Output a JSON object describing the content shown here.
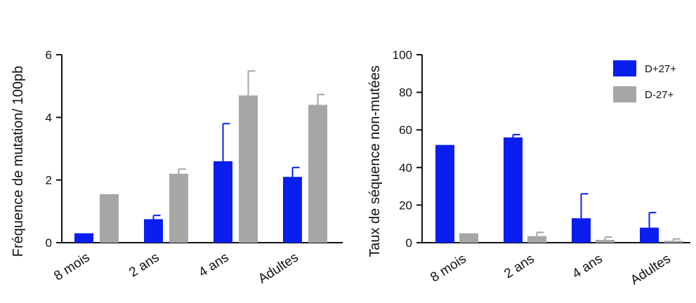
{
  "colors": {
    "blue": "#0a1ef0",
    "gray": "#a6a6a6",
    "axis": "#111111"
  },
  "legend": {
    "entries": [
      {
        "label": "D+27+",
        "color": "#0a1ef0"
      },
      {
        "label": "D-27+",
        "color": "#a6a6a6"
      }
    ],
    "placement": "top-right of right chart"
  },
  "chart_data": [
    {
      "type": "bar",
      "title": "",
      "xlabel": "",
      "ylabel": "Fréquence de mutation/ 100pb",
      "categories": [
        "8 mois",
        "2 ans",
        "4 ans",
        "Adultes"
      ],
      "ylim": [
        0,
        6
      ],
      "yticks": [
        0,
        2,
        4,
        6
      ],
      "grid": false,
      "series": [
        {
          "name": "D+27+",
          "color": "#0a1ef0",
          "values": [
            0.3,
            0.75,
            2.6,
            2.1
          ],
          "errors": [
            0,
            0.12,
            1.2,
            0.3
          ]
        },
        {
          "name": "D-27+",
          "color": "#a6a6a6",
          "values": [
            1.55,
            2.2,
            4.7,
            4.4
          ],
          "errors": [
            0,
            0.15,
            0.78,
            0.33
          ]
        }
      ]
    },
    {
      "type": "bar",
      "title": "",
      "xlabel": "",
      "ylabel": "Taux de séquence non-mutées",
      "categories": [
        "8 mois",
        "2 ans",
        "4 ans",
        "Adultes"
      ],
      "ylim": [
        0,
        100
      ],
      "yticks": [
        0,
        20,
        40,
        60,
        80,
        100
      ],
      "grid": false,
      "series": [
        {
          "name": "D+27+",
          "color": "#0a1ef0",
          "values": [
            52,
            56,
            13,
            8
          ],
          "errors": [
            0,
            1.5,
            13,
            8
          ]
        },
        {
          "name": "D-27+",
          "color": "#a6a6a6",
          "values": [
            5,
            3.5,
            1.5,
            1
          ],
          "errors": [
            0,
            2,
            1.5,
            1
          ]
        }
      ]
    }
  ]
}
